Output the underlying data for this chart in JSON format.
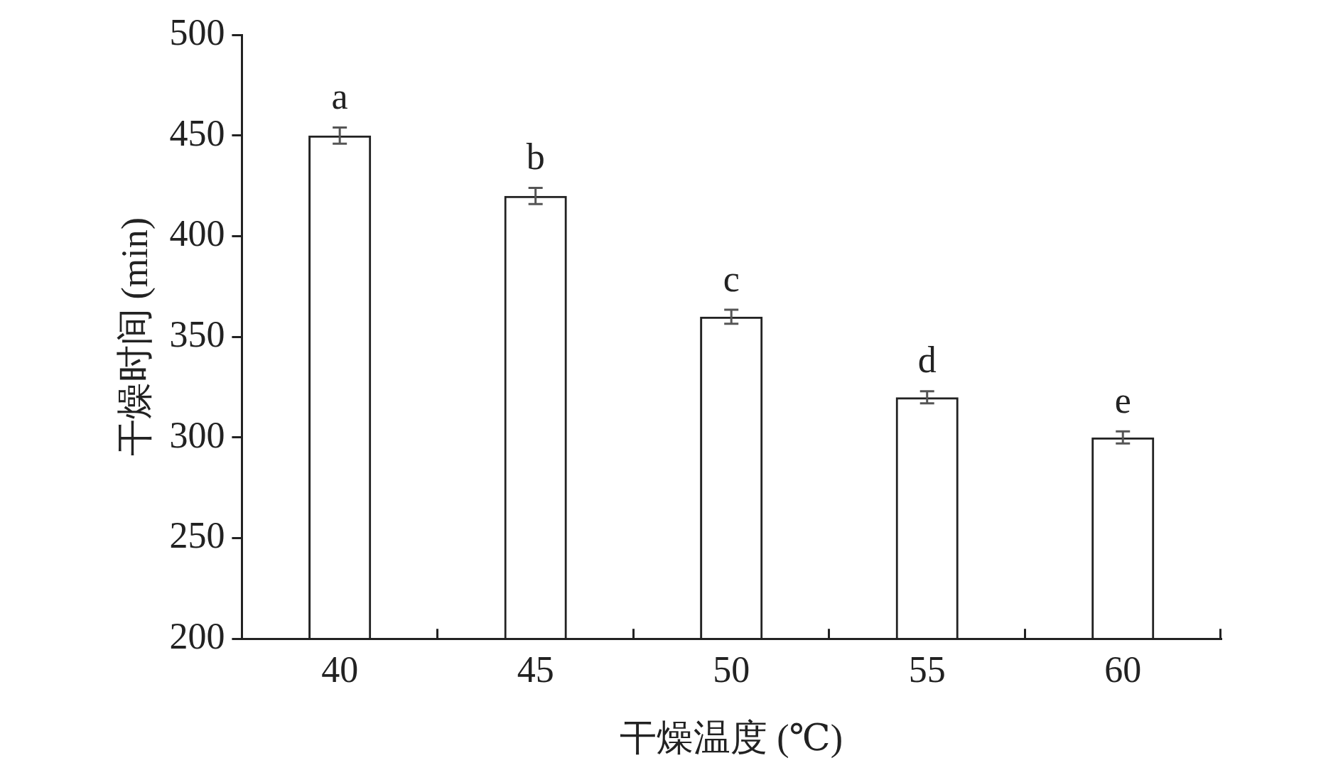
{
  "chart_data": {
    "type": "bar",
    "xlabel": "干燥温度 (℃)",
    "ylabel": "干燥时间 (min)",
    "categories": [
      "40",
      "45",
      "50",
      "55",
      "60"
    ],
    "values": [
      450,
      420,
      360,
      320,
      300
    ],
    "errors": [
      4,
      4,
      3.5,
      3,
      3
    ],
    "color": "#222222",
    "ylim": [
      200,
      500
    ],
    "yticks": [
      200,
      250,
      300,
      350,
      400,
      450,
      500
    ],
    "grid": false,
    "legend": false,
    "annotations": [
      {
        "text": "a",
        "x": "40",
        "y": 450
      },
      {
        "text": "b",
        "x": "45",
        "y": 420
      },
      {
        "text": "c",
        "x": "50",
        "y": 360
      },
      {
        "text": "d",
        "x": "55",
        "y": 320
      },
      {
        "text": "e",
        "x": "60",
        "y": 300
      }
    ]
  }
}
